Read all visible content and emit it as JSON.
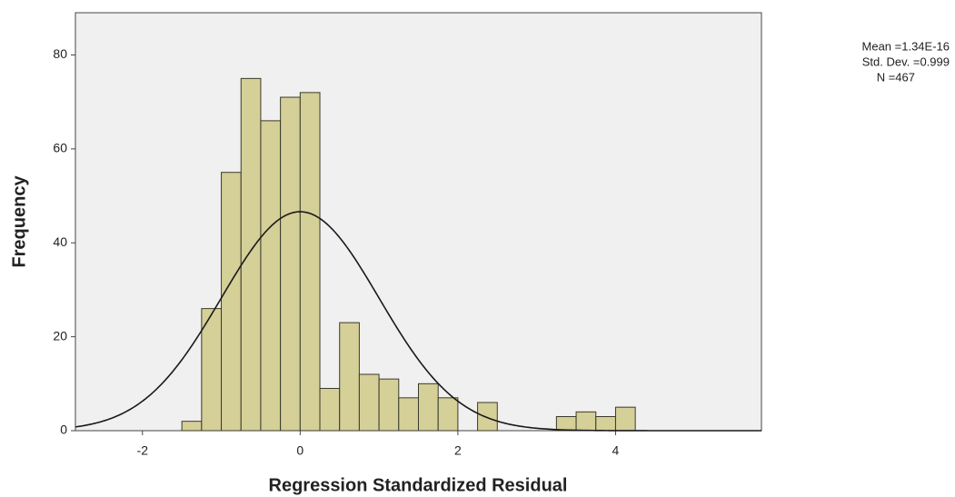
{
  "chart_data": {
    "type": "histogram",
    "x_label": "Regression Standardized Residual",
    "y_label": "Frequency",
    "bins": [
      -1.5,
      -1.25,
      -1.0,
      -0.75,
      -0.5,
      -0.25,
      0,
      0.25,
      0.5,
      0.75,
      1.0,
      1.25,
      1.5,
      1.75,
      2.0,
      2.25,
      2.5,
      2.75,
      3.0,
      3.25,
      3.5,
      3.75,
      4.0,
      4.25
    ],
    "values": [
      2,
      26,
      55,
      75,
      66,
      71,
      72,
      9,
      23,
      12,
      11,
      7,
      10,
      7,
      0,
      6,
      0,
      0,
      0,
      3,
      4,
      3,
      5
    ],
    "color": "#d5cf98",
    "edge_color": "#3a3a2a",
    "background": "#f0f0f0",
    "xlim": [
      -2.85,
      5.85
    ],
    "ylim": [
      0,
      89
    ],
    "xticks": [
      -2,
      0,
      2,
      4
    ],
    "yticks": [
      0,
      20,
      40,
      60,
      80
    ],
    "normal_curve": {
      "mean": {
        "value": 1.34e-16,
        "label": "Mean =1.34E-16"
      },
      "sd": {
        "value": 0.999,
        "label": "Std. Dev. =0.999"
      },
      "n": {
        "value": 467,
        "label": "N =467"
      },
      "color": "#1a1a1a"
    }
  }
}
